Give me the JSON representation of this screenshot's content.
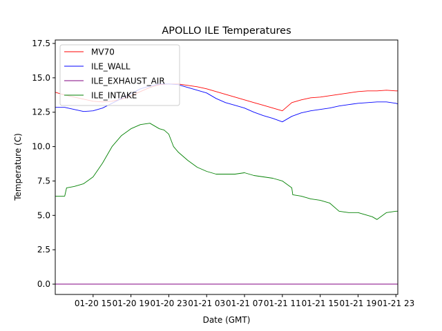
{
  "chart_data": {
    "type": "line",
    "title": "APOLLO ILE Temperatures",
    "xlabel": "Date (GMT)",
    "ylabel": "Temperature (C)",
    "x_unit": "hours since 01-20 11:00 GMT",
    "xlim": [
      0,
      36.2
    ],
    "ylim": [
      -0.75,
      17.75
    ],
    "x_ticks": [
      {
        "x": 4,
        "label": "01-20 15"
      },
      {
        "x": 8,
        "label": "01-20 19"
      },
      {
        "x": 12,
        "label": "01-20 23"
      },
      {
        "x": 16,
        "label": "01-21 03"
      },
      {
        "x": 20,
        "label": "01-21 07"
      },
      {
        "x": 24,
        "label": "01-21 11"
      },
      {
        "x": 28,
        "label": "01-21 15"
      },
      {
        "x": 32,
        "label": "01-21 19"
      },
      {
        "x": 36,
        "label": "01-21 23"
      }
    ],
    "y_ticks": [
      {
        "y": 0.0,
        "label": "0.0"
      },
      {
        "y": 2.5,
        "label": "2.5"
      },
      {
        "y": 5.0,
        "label": "5.0"
      },
      {
        "y": 7.5,
        "label": "7.5"
      },
      {
        "y": 10.0,
        "label": "10.0"
      },
      {
        "y": 12.5,
        "label": "12.5"
      },
      {
        "y": 15.0,
        "label": "15.0"
      },
      {
        "y": 17.5,
        "label": "17.5"
      }
    ],
    "legend_position": "top-left",
    "series": [
      {
        "name": "MV70",
        "color": "#ff0000",
        "x": [
          0,
          1,
          2,
          3,
          4,
          5,
          6,
          7,
          8,
          9,
          10,
          11,
          12,
          13,
          14,
          15,
          16,
          17,
          18,
          19,
          20,
          21,
          22,
          23,
          24,
          25,
          26,
          27,
          28,
          29,
          30,
          31,
          32,
          33,
          34,
          35,
          36,
          36.2
        ],
        "y": [
          13.95,
          13.75,
          13.6,
          13.45,
          13.3,
          13.25,
          13.3,
          13.45,
          13.7,
          14.0,
          14.3,
          14.5,
          14.55,
          14.55,
          14.45,
          14.35,
          14.2,
          14.0,
          13.8,
          13.6,
          13.4,
          13.2,
          13.0,
          12.8,
          12.6,
          13.2,
          13.4,
          13.55,
          13.6,
          13.7,
          13.8,
          13.9,
          14.0,
          14.05,
          14.05,
          14.1,
          14.05,
          14.05
        ]
      },
      {
        "name": "ILE_WALL",
        "color": "#0000ff",
        "x": [
          0,
          1,
          2,
          3,
          4,
          5,
          6,
          7,
          8,
          9,
          10,
          11,
          12,
          13,
          14,
          15,
          16,
          17,
          18,
          19,
          20,
          21,
          22,
          23,
          24,
          25,
          26,
          27,
          28,
          29,
          30,
          31,
          32,
          33,
          34,
          35,
          36,
          36.2
        ],
        "y": [
          12.85,
          12.85,
          12.7,
          12.55,
          12.6,
          12.8,
          13.15,
          13.5,
          13.85,
          14.2,
          14.4,
          14.55,
          14.55,
          14.5,
          14.3,
          14.1,
          13.9,
          13.5,
          13.2,
          13.0,
          12.8,
          12.5,
          12.25,
          12.05,
          11.8,
          12.2,
          12.45,
          12.6,
          12.7,
          12.8,
          12.95,
          13.05,
          13.15,
          13.2,
          13.25,
          13.25,
          13.15,
          13.1
        ]
      },
      {
        "name": "ILE_EXHAUST_AIR",
        "color": "#800080",
        "x": [
          0,
          36.2
        ],
        "y": [
          0.0,
          0.0
        ]
      },
      {
        "name": "ILE_INTAKE",
        "color": "#008000",
        "x": [
          0,
          1,
          1.2,
          2,
          3,
          4,
          4.5,
          5,
          6,
          7,
          8,
          9,
          10,
          11,
          11.5,
          12,
          12.5,
          13,
          14,
          15,
          16,
          17,
          18,
          19,
          20,
          21,
          22,
          23,
          24,
          25,
          25.1,
          26,
          27,
          28,
          29,
          30,
          31,
          32,
          33,
          33.5,
          34,
          35,
          36,
          36.2
        ],
        "y": [
          6.4,
          6.4,
          7.0,
          7.1,
          7.3,
          7.8,
          8.3,
          8.8,
          10.0,
          10.8,
          11.3,
          11.6,
          11.7,
          11.3,
          11.2,
          10.9,
          10.0,
          9.6,
          9.0,
          8.5,
          8.2,
          8.0,
          8.0,
          8.0,
          8.1,
          7.9,
          7.8,
          7.7,
          7.5,
          7.0,
          6.5,
          6.4,
          6.2,
          6.1,
          5.9,
          5.3,
          5.2,
          5.2,
          5.0,
          4.9,
          4.7,
          5.2,
          5.3,
          5.3
        ]
      }
    ]
  }
}
